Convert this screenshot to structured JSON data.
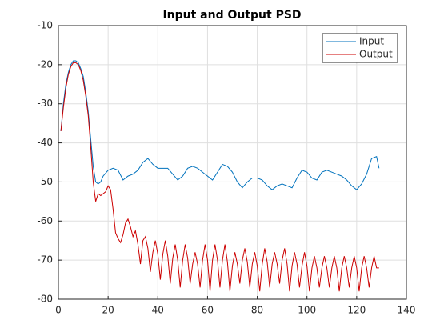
{
  "chart_data": {
    "type": "line",
    "title": "Input and Output PSD",
    "xlim": [
      0,
      140
    ],
    "ylim": [
      -80,
      -10
    ],
    "xticks": [
      0,
      20,
      40,
      60,
      80,
      100,
      120,
      140
    ],
    "yticks": [
      -80,
      -70,
      -60,
      -50,
      -40,
      -30,
      -20,
      -10
    ],
    "grid": true,
    "legend": "northeast",
    "series": [
      {
        "name": "Input",
        "color": "#0072bd",
        "x": [
          1,
          2,
          3,
          4,
          5,
          6,
          7,
          8,
          9,
          10,
          11,
          12,
          13,
          14,
          15,
          16,
          17,
          18,
          20,
          22,
          24,
          26,
          28,
          30,
          32,
          34,
          36,
          38,
          40,
          42,
          44,
          46,
          48,
          50,
          52,
          54,
          56,
          58,
          60,
          62,
          64,
          66,
          68,
          70,
          72,
          74,
          76,
          78,
          80,
          82,
          84,
          86,
          88,
          90,
          92,
          94,
          96,
          98,
          100,
          102,
          104,
          106,
          108,
          110,
          112,
          114,
          116,
          118,
          120,
          122,
          124,
          126,
          128,
          129
        ],
        "values": [
          -37,
          -30,
          -25,
          -22,
          -20,
          -19,
          -19,
          -19.5,
          -21,
          -23,
          -27,
          -32,
          -39,
          -46,
          -50,
          -50.5,
          -50,
          -48.5,
          -47,
          -46.5,
          -47,
          -49.5,
          -48.5,
          -48,
          -47,
          -45,
          -44,
          -45.5,
          -46.5,
          -46.5,
          -46.5,
          -48,
          -49.5,
          -48.5,
          -46.5,
          -46,
          -46.5,
          -47.5,
          -48.5,
          -49.5,
          -47.5,
          -45.5,
          -46,
          -47.5,
          -50,
          -51.5,
          -50,
          -49,
          -49,
          -49.5,
          -51,
          -52,
          -51,
          -50.5,
          -51,
          -51.5,
          -49,
          -47,
          -47.5,
          -49,
          -49.5,
          -47.5,
          -47,
          -47.5,
          -48,
          -48.5,
          -49.5,
          -51,
          -52,
          -50.5,
          -48,
          -44,
          -43.5,
          -46.5
        ]
      },
      {
        "name": "Output",
        "color": "#cc0000",
        "x": [
          1,
          2,
          3,
          4,
          5,
          6,
          7,
          8,
          9,
          10,
          11,
          12,
          13,
          14,
          15,
          16,
          17,
          18,
          19,
          20,
          21,
          22,
          23,
          24,
          25,
          26,
          27,
          28,
          29,
          30,
          31,
          32,
          33,
          34,
          35,
          36,
          37,
          38,
          39,
          40,
          41,
          42,
          43,
          44,
          45,
          46,
          47,
          48,
          49,
          50,
          51,
          52,
          53,
          54,
          55,
          56,
          57,
          58,
          59,
          60,
          61,
          62,
          63,
          64,
          65,
          66,
          67,
          68,
          69,
          70,
          71,
          72,
          73,
          74,
          75,
          76,
          77,
          78,
          79,
          80,
          81,
          82,
          83,
          84,
          85,
          86,
          87,
          88,
          89,
          90,
          91,
          92,
          93,
          94,
          95,
          96,
          97,
          98,
          99,
          100,
          101,
          102,
          103,
          104,
          105,
          106,
          107,
          108,
          109,
          110,
          111,
          112,
          113,
          114,
          115,
          116,
          117,
          118,
          119,
          120,
          121,
          122,
          123,
          124,
          125,
          126,
          127,
          128,
          129
        ],
        "values": [
          -37,
          -31,
          -26,
          -22.5,
          -20.5,
          -19.5,
          -19.5,
          -20,
          -21.5,
          -24,
          -28,
          -33,
          -41,
          -50,
          -55,
          -53,
          -53.5,
          -53,
          -52.5,
          -51,
          -52,
          -57,
          -63,
          -64.5,
          -65.5,
          -63.5,
          -60.5,
          -59.5,
          -61.5,
          -64,
          -62.5,
          -66,
          -71,
          -65,
          -64,
          -67,
          -73,
          -68,
          -65,
          -68.5,
          -75,
          -68.5,
          -65,
          -69,
          -76,
          -69.5,
          -66,
          -70,
          -77,
          -70,
          -66,
          -69.5,
          -76,
          -71,
          -68,
          -71,
          -77,
          -70,
          -66,
          -70,
          -78,
          -70,
          -66,
          -70,
          -77,
          -70,
          -66,
          -70.5,
          -78,
          -71.5,
          -68,
          -71,
          -76,
          -70,
          -67,
          -70.5,
          -77,
          -71,
          -68,
          -71.5,
          -78,
          -71,
          -67,
          -70.5,
          -77,
          -71,
          -68,
          -71,
          -76,
          -70,
          -67,
          -71,
          -78,
          -71.5,
          -68,
          -71,
          -77,
          -71.5,
          -68,
          -71.5,
          -78,
          -72,
          -69,
          -72,
          -77,
          -72,
          -69,
          -72,
          -77,
          -72,
          -69,
          -72,
          -78,
          -72,
          -69,
          -72,
          -77,
          -72,
          -69,
          -72,
          -78,
          -72,
          -69,
          -72,
          -77,
          -72,
          -69,
          -72,
          -72
        ]
      }
    ]
  }
}
